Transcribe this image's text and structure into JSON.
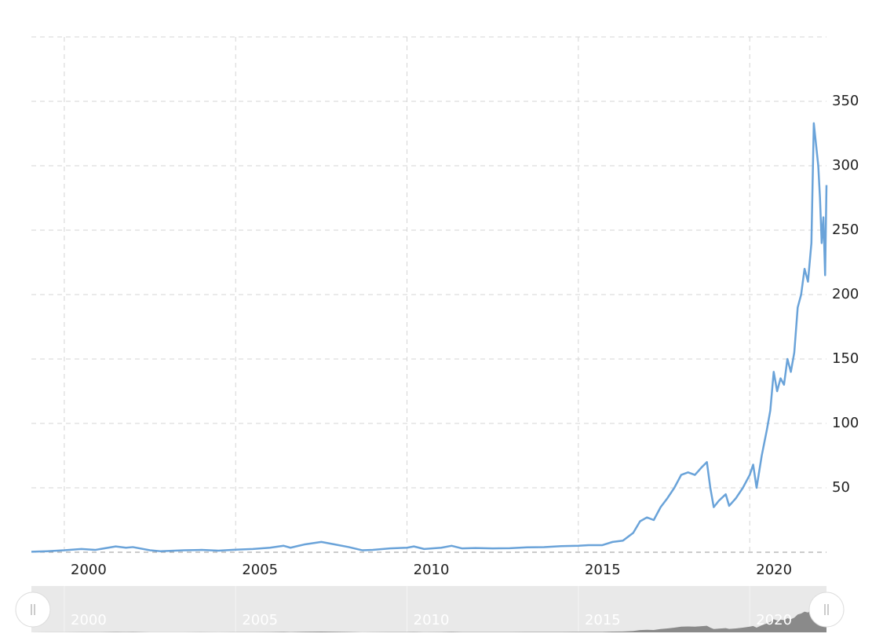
{
  "chart_data": {
    "type": "line",
    "x": [
      1999.04,
      1999.5,
      2000.0,
      2000.5,
      2000.9,
      2001.5,
      2001.8,
      2002.0,
      2002.5,
      2002.8,
      2003.5,
      2004.0,
      2004.5,
      2005.0,
      2005.5,
      2006.0,
      2006.4,
      2006.6,
      2007.0,
      2007.5,
      2007.9,
      2008.3,
      2008.7,
      2009.0,
      2009.5,
      2010.0,
      2010.2,
      2010.5,
      2011.0,
      2011.3,
      2011.6,
      2012.0,
      2012.5,
      2013.0,
      2013.5,
      2014.0,
      2014.5,
      2015.0,
      2015.3,
      2015.7,
      2016.0,
      2016.3,
      2016.6,
      2016.8,
      2017.0,
      2017.2,
      2017.4,
      2017.6,
      2017.8,
      2018.0,
      2018.2,
      2018.4,
      2018.6,
      2018.75,
      2018.85,
      2018.95,
      2019.1,
      2019.3,
      2019.4,
      2019.6,
      2019.8,
      2020.0,
      2020.1,
      2020.2,
      2020.35,
      2020.5,
      2020.6,
      2020.7,
      2020.8,
      2020.9,
      2021.0,
      2021.1,
      2021.2,
      2021.3,
      2021.4,
      2021.5,
      2021.6,
      2021.7,
      2021.8,
      2021.87,
      2022.0,
      2022.05,
      2022.1,
      2022.15,
      2022.2,
      2022.24
    ],
    "series": [
      {
        "color": "#6aa3d9",
        "values": [
          0.4,
          0.8,
          1.5,
          2.5,
          1.8,
          4.5,
          3.5,
          4,
          1.5,
          0.8,
          1.5,
          1.8,
          1.2,
          2,
          2.5,
          3.5,
          5,
          3.5,
          6,
          8,
          6,
          4,
          1.5,
          1.8,
          3,
          3.5,
          4.5,
          2.5,
          3.5,
          5,
          3,
          3.3,
          3,
          3.1,
          3.8,
          4,
          4.7,
          5,
          5.5,
          5.5,
          8,
          9,
          15,
          24,
          27,
          25,
          35,
          42,
          50,
          60,
          62,
          60,
          66,
          70,
          50,
          35,
          40,
          45,
          36,
          42,
          50,
          60,
          68,
          50,
          75,
          95,
          110,
          140,
          125,
          135,
          130,
          150,
          140,
          155,
          190,
          200,
          220,
          210,
          240,
          333,
          300,
          275,
          240,
          260,
          215,
          285
        ]
      }
    ],
    "xlim": [
      1999.04,
      2022.24
    ],
    "xticks": [
      2000,
      2005,
      2010,
      2015,
      2020
    ],
    "ylim": [
      0,
      400
    ],
    "yticks": [
      50,
      100,
      150,
      200,
      250,
      300,
      350
    ],
    "grid": true
  }
}
